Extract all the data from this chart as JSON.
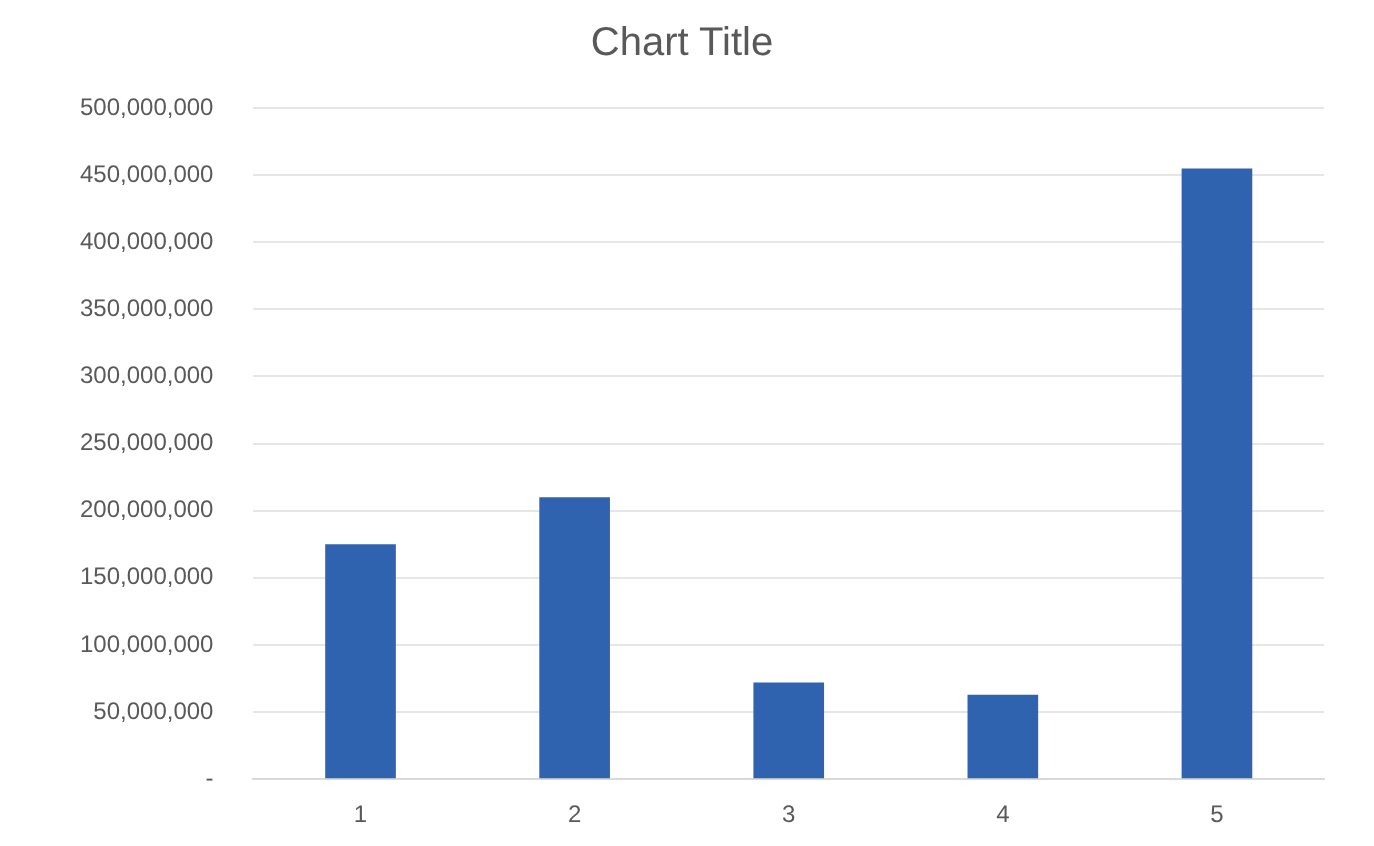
{
  "chart_data": {
    "type": "bar",
    "title": "Chart Title",
    "categories": [
      "1",
      "2",
      "3",
      "4",
      "5"
    ],
    "values": [
      175000000,
      210000000,
      72000000,
      63000000,
      455000000
    ],
    "color": "#2f63b0",
    "ylim": [
      0,
      500000000
    ],
    "yticks": [
      {
        "value": 0,
        "label": "-"
      },
      {
        "value": 50000000,
        "label": "50,000,000"
      },
      {
        "value": 100000000,
        "label": "100,000,000"
      },
      {
        "value": 150000000,
        "label": "150,000,000"
      },
      {
        "value": 200000000,
        "label": "200,000,000"
      },
      {
        "value": 250000000,
        "label": "250,000,000"
      },
      {
        "value": 300000000,
        "label": "300,000,000"
      },
      {
        "value": 350000000,
        "label": "350,000,000"
      },
      {
        "value": 400000000,
        "label": "400,000,000"
      },
      {
        "value": 450000000,
        "label": "450,000,000"
      },
      {
        "value": 500000000,
        "label": "500,000,000"
      }
    ],
    "grid": "y",
    "legend": false
  }
}
